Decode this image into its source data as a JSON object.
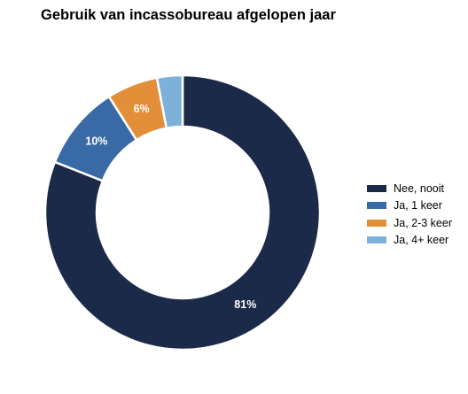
{
  "chart_data": {
    "type": "pie",
    "title": "Gebruik van incassobureau afgelopen jaar",
    "categories": [
      "Nee, nooit",
      "Ja, 1 keer",
      "Ja, 2-3 keer",
      "Ja, 4+ keer"
    ],
    "values": [
      81,
      10,
      6,
      3
    ],
    "data_labels": [
      "81%",
      "10%",
      "6%",
      ""
    ],
    "colors": [
      "#1c2a4a",
      "#3a6aa6",
      "#e38f3a",
      "#7eb1d9"
    ],
    "donut": true,
    "legend_position": "right"
  }
}
